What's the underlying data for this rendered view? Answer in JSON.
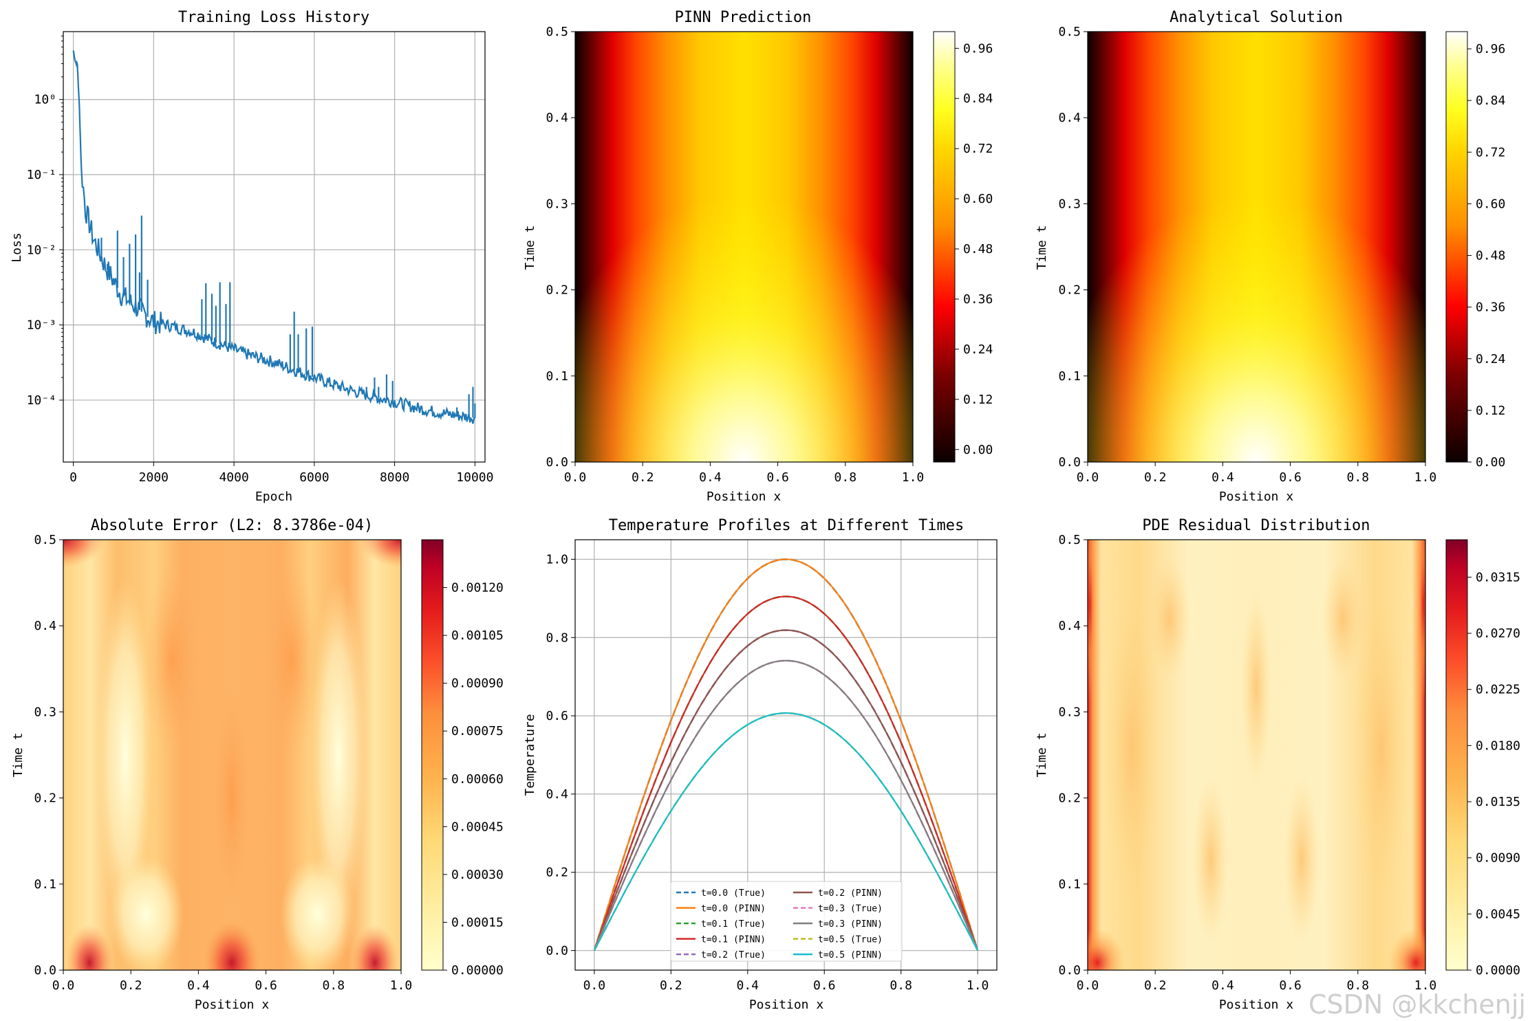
{
  "watermark": "CSDN @kkchenjj",
  "chart_data": [
    {
      "type": "line",
      "title": "Training Loss History",
      "xlabel": "Epoch",
      "ylabel": "Loss",
      "yscale": "log",
      "xlim": [
        -250,
        10250
      ],
      "ylim": [
        1.5e-05,
        8.0
      ],
      "grid": true,
      "x_ticks": [
        0,
        2000,
        4000,
        6000,
        8000,
        10000
      ],
      "x_tick_labels": [
        "0",
        "2000",
        "4000",
        "6000",
        "8000",
        "10000"
      ],
      "y_ticks": [
        1,
        0.1,
        0.01,
        0.001,
        0.0001
      ],
      "y_tick_labels": [
        "10⁰",
        "10⁻¹",
        "10⁻²",
        "10⁻³",
        "10⁻⁴"
      ],
      "series": [
        {
          "color": "#1f77b4",
          "x": [
            0,
            50,
            100,
            150,
            200,
            300,
            500,
            800,
            1200,
            1700,
            2000,
            2500,
            3000,
            3500,
            4000,
            4500,
            5000,
            5500,
            6000,
            6500,
            7000,
            7500,
            8000,
            8500,
            9000,
            9500,
            10000
          ],
          "y": [
            4.5,
            3.2,
            2.9,
            0.8,
            0.12,
            0.035,
            0.014,
            0.006,
            0.0025,
            0.0015,
            0.0011,
            0.00095,
            0.0008,
            0.0006,
            0.00047,
            0.00038,
            0.00032,
            0.00025,
            0.0002,
            0.00016,
            0.00013,
            0.00011,
            9.5e-05,
            8e-05,
            7e-05,
            6.3e-05,
            5.8e-05
          ]
        }
      ],
      "spikes": [
        {
          "x": 700,
          "y": 0.0145
        },
        {
          "x": 850,
          "y": 0.0065
        },
        {
          "x": 1100,
          "y": 0.018
        },
        {
          "x": 1250,
          "y": 0.008
        },
        {
          "x": 1400,
          "y": 0.012
        },
        {
          "x": 1550,
          "y": 0.016
        },
        {
          "x": 1650,
          "y": 0.005
        },
        {
          "x": 1700,
          "y": 0.0285
        },
        {
          "x": 1850,
          "y": 0.004
        },
        {
          "x": 2000,
          "y": 0.0013
        },
        {
          "x": 3200,
          "y": 0.0022
        },
        {
          "x": 3300,
          "y": 0.0036
        },
        {
          "x": 3450,
          "y": 0.0026
        },
        {
          "x": 3550,
          "y": 0.0018
        },
        {
          "x": 3650,
          "y": 0.0037
        },
        {
          "x": 3800,
          "y": 0.0019
        },
        {
          "x": 3900,
          "y": 0.0037
        },
        {
          "x": 4000,
          "y": 0.00045
        },
        {
          "x": 5400,
          "y": 0.00075
        },
        {
          "x": 5500,
          "y": 0.0015
        },
        {
          "x": 5600,
          "y": 0.00075
        },
        {
          "x": 5800,
          "y": 0.0009
        },
        {
          "x": 5950,
          "y": 0.00095
        },
        {
          "x": 7300,
          "y": 0.00015
        },
        {
          "x": 7500,
          "y": 0.0002
        },
        {
          "x": 7600,
          "y": 0.00015
        },
        {
          "x": 7800,
          "y": 0.00022
        },
        {
          "x": 7950,
          "y": 0.00018
        },
        {
          "x": 9550,
          "y": 8e-05
        },
        {
          "x": 9850,
          "y": 0.00012
        },
        {
          "x": 9950,
          "y": 0.00015
        },
        {
          "x": 10000,
          "y": 9e-05
        }
      ]
    },
    {
      "type": "heatmap",
      "title": "PINN Prediction",
      "xlabel": "Position x",
      "ylabel": "Time t",
      "xlim": [
        0.0,
        1.0
      ],
      "ylim": [
        0.0,
        0.5
      ],
      "x_ticks": [
        "0.0",
        "0.2",
        "0.4",
        "0.6",
        "0.8",
        "1.0"
      ],
      "y_ticks": [
        "0.0",
        "0.1",
        "0.2",
        "0.3",
        "0.4",
        "0.5"
      ],
      "colormap": "hot",
      "function": "sin(pi*x)*exp(-t)",
      "colorbar_range": [
        -0.03,
        1.0
      ],
      "colorbar_ticks": [
        "0.00",
        "0.12",
        "0.24",
        "0.36",
        "0.48",
        "0.60",
        "0.72",
        "0.84",
        "0.96"
      ]
    },
    {
      "type": "heatmap",
      "title": "Analytical Solution",
      "xlabel": "Position x",
      "ylabel": "Time t",
      "xlim": [
        0.0,
        1.0
      ],
      "ylim": [
        0.0,
        0.5
      ],
      "x_ticks": [
        "0.0",
        "0.2",
        "0.4",
        "0.6",
        "0.8",
        "1.0"
      ],
      "y_ticks": [
        "0.0",
        "0.1",
        "0.2",
        "0.3",
        "0.4",
        "0.5"
      ],
      "colormap": "hot",
      "function": "sin(pi*x)*exp(-t)",
      "colorbar_range": [
        0.0,
        1.0
      ],
      "colorbar_ticks": [
        "0.00",
        "0.12",
        "0.24",
        "0.36",
        "0.48",
        "0.60",
        "0.72",
        "0.84",
        "0.96"
      ]
    },
    {
      "type": "heatmap",
      "title": "Absolute Error (L2: 8.3786e-04)",
      "xlabel": "Position x",
      "ylabel": "Time t",
      "xlim": [
        0.0,
        1.0
      ],
      "ylim": [
        0.0,
        0.5
      ],
      "x_ticks": [
        "0.0",
        "0.2",
        "0.4",
        "0.6",
        "0.8",
        "1.0"
      ],
      "y_ticks": [
        "0.0",
        "0.1",
        "0.2",
        "0.3",
        "0.4",
        "0.5"
      ],
      "colormap": "YlOrRd",
      "colorbar_range": [
        0.0,
        0.00135
      ],
      "colorbar_ticks": [
        "0.00000",
        "0.00015",
        "0.00030",
        "0.00045",
        "0.00060",
        "0.00075",
        "0.00090",
        "0.00105",
        "0.00120"
      ]
    },
    {
      "type": "line",
      "title": "Temperature Profiles at Different Times",
      "xlabel": "Position x",
      "ylabel": "Temperature",
      "xlim": [
        -0.05,
        1.05
      ],
      "ylim": [
        -0.05,
        1.05
      ],
      "grid": true,
      "x_ticks": [
        "0.0",
        "0.2",
        "0.4",
        "0.6",
        "0.8",
        "1.0"
      ],
      "y_ticks": [
        "0.0",
        "0.2",
        "0.4",
        "0.6",
        "0.8",
        "1.0"
      ],
      "legend_position": "lower center",
      "x": [
        0.0,
        0.05,
        0.1,
        0.15,
        0.2,
        0.25,
        0.3,
        0.35,
        0.4,
        0.45,
        0.5,
        0.55,
        0.6,
        0.65,
        0.7,
        0.75,
        0.8,
        0.85,
        0.9,
        0.95,
        1.0
      ],
      "series": [
        {
          "name": "t=0.0 (True)",
          "t": 0.0,
          "color": "#1f77b4",
          "dash": true,
          "amplitude": 1.0
        },
        {
          "name": "t=0.0 (PINN)",
          "t": 0.0,
          "color": "#ff7f0e",
          "dash": false,
          "amplitude": 1.0
        },
        {
          "name": "t=0.1 (True)",
          "t": 0.1,
          "color": "#2ca02c",
          "dash": true,
          "amplitude": 0.905
        },
        {
          "name": "t=0.1 (PINN)",
          "t": 0.1,
          "color": "#d62728",
          "dash": false,
          "amplitude": 0.905
        },
        {
          "name": "t=0.2 (True)",
          "t": 0.2,
          "color": "#9467bd",
          "dash": true,
          "amplitude": 0.819
        },
        {
          "name": "t=0.2 (PINN)",
          "t": 0.2,
          "color": "#8c564b",
          "dash": false,
          "amplitude": 0.819
        },
        {
          "name": "t=0.3 (True)",
          "t": 0.3,
          "color": "#e377c2",
          "dash": true,
          "amplitude": 0.741
        },
        {
          "name": "t=0.3 (PINN)",
          "t": 0.3,
          "color": "#7f7f7f",
          "dash": false,
          "amplitude": 0.741
        },
        {
          "name": "t=0.5 (True)",
          "t": 0.5,
          "color": "#bcbd22",
          "dash": true,
          "amplitude": 0.607
        },
        {
          "name": "t=0.5 (PINN)",
          "t": 0.5,
          "color": "#17becf",
          "dash": false,
          "amplitude": 0.607
        }
      ]
    },
    {
      "type": "heatmap",
      "title": "PDE Residual Distribution",
      "xlabel": "Position x",
      "ylabel": "Time t",
      "xlim": [
        0.0,
        1.0
      ],
      "ylim": [
        0.0,
        0.5
      ],
      "x_ticks": [
        "0.0",
        "0.2",
        "0.4",
        "0.6",
        "0.8",
        "1.0"
      ],
      "y_ticks": [
        "0.0",
        "0.1",
        "0.2",
        "0.3",
        "0.4",
        "0.5"
      ],
      "colormap": "YlOrRd",
      "colorbar_range": [
        0.0,
        0.0345
      ],
      "colorbar_ticks": [
        "0.0000",
        "0.0045",
        "0.0090",
        "0.0135",
        "0.0180",
        "0.0225",
        "0.0270",
        "0.0315"
      ]
    }
  ]
}
